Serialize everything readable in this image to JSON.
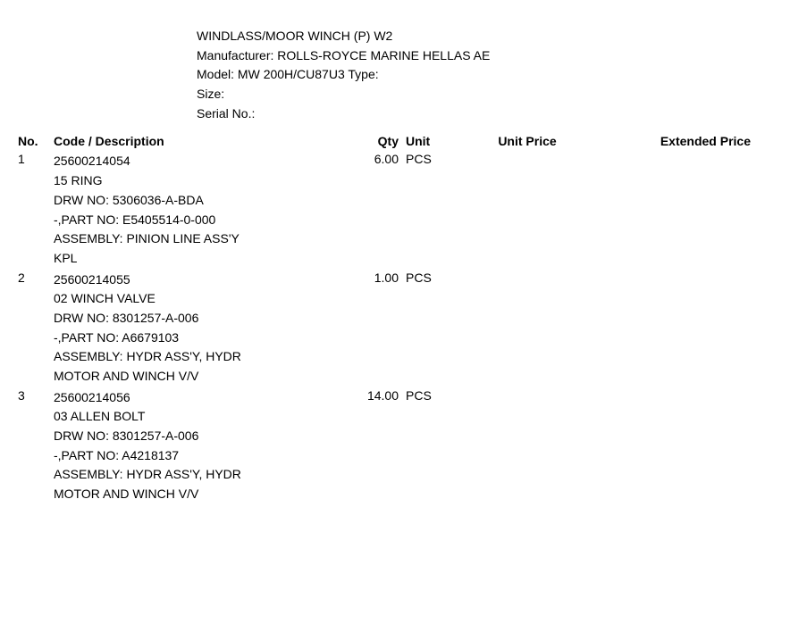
{
  "header": {
    "title": "WINDLASS/MOOR WINCH (P) W2",
    "manufacturer_label": "Manufacturer:",
    "manufacturer_value": "ROLLS-ROYCE MARINE HELLAS AE",
    "model_label": "Model:",
    "model_value": "MW 200H/CU87U3",
    "type_label": "Type:",
    "type_value": "",
    "size_label": "Size:",
    "size_value": "",
    "serial_label": "Serial No.:",
    "serial_value": ""
  },
  "columns": {
    "no": "No.",
    "code_desc": "Code / Description",
    "qty": "Qty",
    "unit": "Unit",
    "unit_price": "Unit Price",
    "extended_price": "Extended Price"
  },
  "items": [
    {
      "no": "1",
      "code": "25600214054",
      "qty": "6.00",
      "unit": "PCS",
      "desc1": "15 RING",
      "desc2": "DRW NO: 5306036-A-BDA",
      "desc3": "-,PART NO: E5405514-0-000",
      "desc4": "ASSEMBLY: PINION LINE ASS'Y KPL",
      "unit_price": "",
      "extended_price": ""
    },
    {
      "no": "2",
      "code": "25600214055",
      "qty": "1.00",
      "unit": "PCS",
      "desc1": "02 WINCH VALVE",
      "desc2": "DRW NO: 8301257-A-006",
      "desc3": "-,PART NO: A6679103",
      "desc4": "ASSEMBLY: HYDR ASS'Y, HYDR MOTOR AND WINCH V/V",
      "unit_price": "",
      "extended_price": ""
    },
    {
      "no": "3",
      "code": "25600214056",
      "qty": "14.00",
      "unit": "PCS",
      "desc1": "03 ALLEN BOLT",
      "desc2": "DRW NO: 8301257-A-006",
      "desc3": "-,PART NO: A4218137",
      "desc4": "ASSEMBLY: HYDR ASS'Y, HYDR MOTOR AND WINCH V/V",
      "unit_price": "",
      "extended_price": ""
    }
  ],
  "styling": {
    "font_family": "Arial",
    "font_size_pt": 11,
    "text_color": "#000000",
    "background_color": "#ffffff",
    "line_height": 1.55
  }
}
